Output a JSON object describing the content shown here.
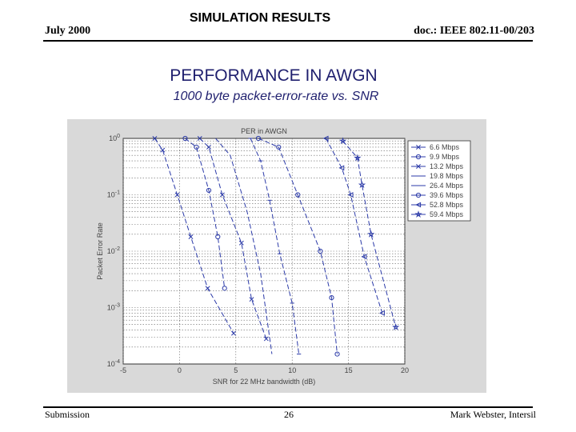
{
  "header": {
    "date": "July 2000",
    "title": "SIMULATION RESULTS",
    "doc_id": "doc.: IEEE 802.11-00/203"
  },
  "slide": {
    "title": "PERFORMANCE IN AWGN",
    "subtitle": "1000 byte packet-error-rate vs. SNR"
  },
  "footer": {
    "left": "Submission",
    "page": "26",
    "right": "Mark Webster, Intersil"
  },
  "chart_data": {
    "type": "line",
    "title": "PER in AWGN",
    "xlabel": "SNR for 22 MHz bandwidth (dB)",
    "ylabel": "Packet Error Rate",
    "xlim": [
      -5,
      20
    ],
    "ylim": [
      0.0001,
      1
    ],
    "yscale": "log",
    "grid": true,
    "x_ticks": [
      -5,
      0,
      5,
      10,
      15,
      20
    ],
    "x_tick_labels": [
      "-5",
      "0",
      "5",
      "10",
      "15",
      "20"
    ],
    "y_ticks": [
      1,
      0.1,
      0.01,
      0.001,
      0.0001
    ],
    "y_tick_labels": [
      "10^0",
      "10^-1",
      "10^-2",
      "10^-3",
      "10^-4"
    ],
    "legend_position": "top-right",
    "line_color": "#2b3aa8",
    "plot_bg": "#ffffff",
    "figure_bg": "#d9d9d9",
    "series": [
      {
        "name": "6.6 Mbps",
        "marker": "x",
        "x": [
          -2.2,
          -1.5,
          -0.2,
          1.0,
          2.5,
          4.8
        ],
        "y": [
          1,
          0.62,
          0.1,
          0.018,
          0.0022,
          0.00035
        ]
      },
      {
        "name": "9.9 Mbps",
        "marker": "o",
        "x": [
          0.5,
          1.5,
          2.6,
          3.4,
          4.0
        ],
        "y": [
          1,
          0.7,
          0.12,
          0.018,
          0.0022
        ]
      },
      {
        "name": "13.2 Mbps",
        "marker": "x",
        "x": [
          1.8,
          2.6,
          3.8,
          5.5,
          6.4,
          7.7
        ],
        "y": [
          1,
          0.7,
          0.1,
          0.014,
          0.0014,
          0.00028
        ]
      },
      {
        "name": "19.8 Mbps",
        "marker": "none",
        "x": [
          3.2,
          4.5,
          6.0,
          7.2,
          8.2
        ],
        "y": [
          1,
          0.5,
          0.05,
          0.004,
          0.00015
        ]
      },
      {
        "name": "26.4 Mbps",
        "marker": "-",
        "x": [
          6.3,
          7.2,
          8.0,
          8.9,
          10.0,
          10.6
        ],
        "y": [
          1,
          0.4,
          0.08,
          0.009,
          0.0012,
          0.00015
        ]
      },
      {
        "name": "39.6 Mbps",
        "marker": "o",
        "x": [
          7.0,
          8.8,
          10.5,
          12.5,
          13.5,
          14.0
        ],
        "y": [
          1,
          0.7,
          0.1,
          0.01,
          0.0015,
          0.00015
        ]
      },
      {
        "name": "52.8 Mbps",
        "marker": "<",
        "x": [
          13.0,
          14.4,
          15.2,
          16.4,
          18.0
        ],
        "y": [
          1,
          0.3,
          0.1,
          0.008,
          0.0008
        ]
      },
      {
        "name": "59.4 Mbps",
        "marker": "star",
        "x": [
          14.5,
          15.8,
          16.2,
          17.0,
          19.2
        ],
        "y": [
          0.9,
          0.45,
          0.15,
          0.02,
          0.00045
        ]
      }
    ]
  }
}
